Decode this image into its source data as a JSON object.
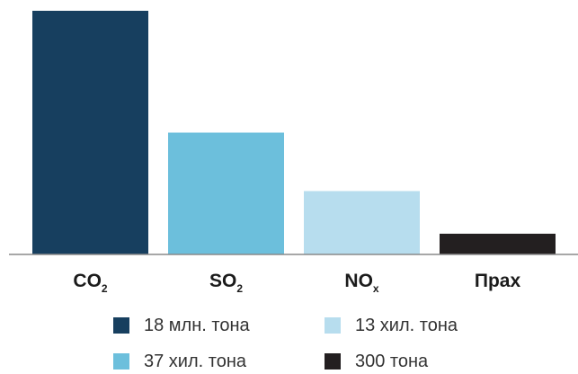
{
  "chart_data": {
    "type": "bar",
    "categories": [
      {
        "main": "CO",
        "sub": "2"
      },
      {
        "main": "SO",
        "sub": "2"
      },
      {
        "main": "NO",
        "sub": "x"
      },
      {
        "main": "Прах",
        "sub": ""
      }
    ],
    "values": [
      100,
      50,
      26,
      8.5
    ],
    "colors": [
      "#173f5f",
      "#6cbfdc",
      "#b7ddee",
      "#231f20"
    ],
    "axis_color": "#8a8a8a",
    "grid": false,
    "legend": {
      "placement": "bottom",
      "items": [
        {
          "label": "18 млн. тона",
          "color": "#173f5f"
        },
        {
          "label": "13 хил. тона",
          "color": "#b7ddee"
        },
        {
          "label": "37 хил. тона",
          "color": "#6cbfdc"
        },
        {
          "label": "300 тона",
          "color": "#231f20"
        }
      ]
    }
  }
}
